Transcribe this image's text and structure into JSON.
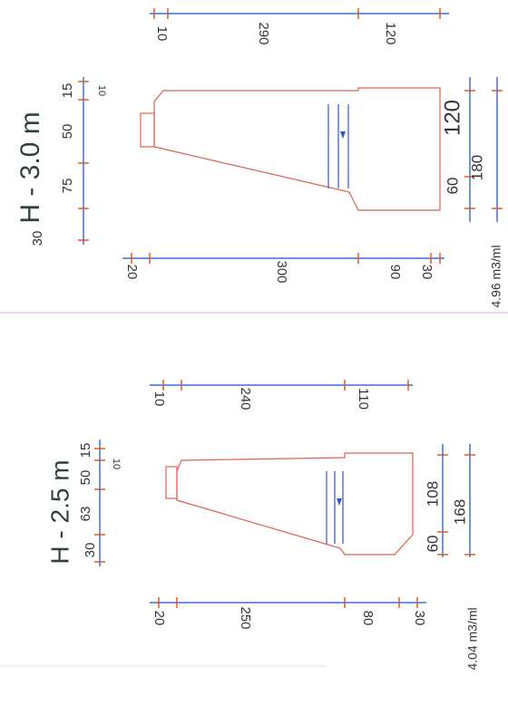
{
  "sections": [
    {
      "title": "H - 3.0 m",
      "volume": "4.96 m3/ml",
      "left": [
        "15",
        "50",
        "75",
        "30"
      ],
      "left_small": "10",
      "top": [
        "10",
        "290",
        "120"
      ],
      "bottom": [
        "20",
        "300",
        "90",
        "30"
      ],
      "right": [
        "120",
        "60",
        "180"
      ]
    },
    {
      "title": "H - 2.5 m",
      "volume": "4.04 m3/ml",
      "left": [
        "15",
        "50",
        "63",
        "30"
      ],
      "left_small": "10",
      "top": [
        "10",
        "240",
        "110"
      ],
      "bottom": [
        "20",
        "250",
        "80",
        "30"
      ],
      "right": [
        "108",
        "60",
        "168"
      ]
    }
  ]
}
